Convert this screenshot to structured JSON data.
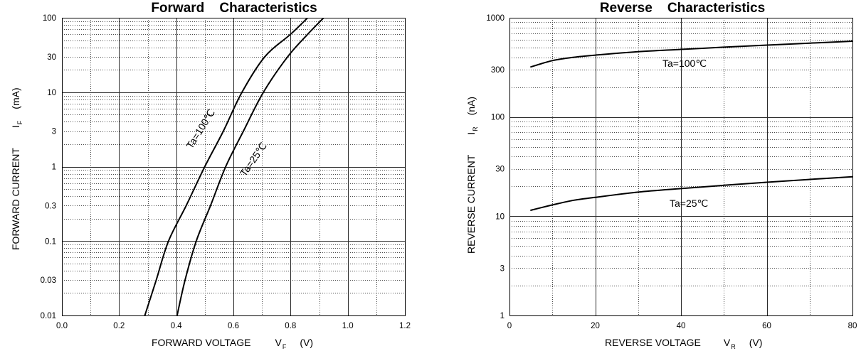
{
  "chart_data": [
    {
      "type": "line",
      "title": "Forward    Characteristics",
      "xlabel": {
        "text": "FORWARD VOLTAGE",
        "symbol": "V",
        "subscript": "F",
        "unit": "(V)"
      },
      "ylabel": {
        "text": "FORWARD CURRENT",
        "symbol": "I",
        "subscript": "F",
        "unit": "(mA)"
      },
      "xscale": "linear",
      "yscale": "log",
      "xlim": [
        0,
        1.2
      ],
      "ylim": [
        0.01,
        100
      ],
      "xticks": [
        0,
        0.2,
        0.4,
        0.6,
        0.8,
        1.0,
        1.2
      ],
      "xtick_labels": [
        "0.0",
        "0.2",
        "0.4",
        "0.6",
        "0.8",
        "1.0",
        "1.2"
      ],
      "yticks": [
        100,
        30,
        10,
        3,
        1,
        0.3,
        0.1,
        0.03,
        0.01
      ],
      "ytick_labels": [
        "100",
        "30",
        "10",
        "3",
        "1",
        "0.3",
        "0.1",
        "0.03",
        "0.01"
      ],
      "grid": true,
      "series": [
        {
          "name": "Ta=100℃",
          "x": [
            0.29,
            0.33,
            0.373,
            0.435,
            0.5,
            0.565,
            0.63,
            0.71,
            0.8,
            0.86
          ],
          "y": [
            0.01,
            0.03,
            0.1,
            0.3,
            1,
            3,
            10,
            30,
            60,
            100
          ]
        },
        {
          "name": "Ta=25℃",
          "x": [
            0.403,
            0.431,
            0.47,
            0.52,
            0.573,
            0.635,
            0.705,
            0.79,
            0.86,
            0.916
          ],
          "y": [
            0.01,
            0.03,
            0.1,
            0.3,
            1,
            3,
            10,
            30,
            60,
            100
          ]
        }
      ]
    },
    {
      "type": "line",
      "title": "Reverse    Characteristics",
      "xlabel": {
        "text": "REVERSE VOLTAGE",
        "symbol": "V",
        "subscript": "R",
        "unit": "(V)"
      },
      "ylabel": {
        "text": "REVERSE CURRENT",
        "symbol": "I",
        "subscript": "R",
        "unit": "(nA)"
      },
      "xscale": "linear",
      "yscale": "log",
      "xlim": [
        0,
        80
      ],
      "ylim": [
        1,
        1000
      ],
      "xticks": [
        0,
        20,
        40,
        60,
        80
      ],
      "xtick_labels": [
        "0",
        "20",
        "40",
        "60",
        "80"
      ],
      "yticks": [
        1000,
        300,
        100,
        30,
        10,
        3,
        1
      ],
      "ytick_labels": [
        "1000",
        "300",
        "100",
        "30",
        "10",
        "3",
        "1"
      ],
      "grid": true,
      "series": [
        {
          "name": "Ta=100℃",
          "x": [
            5,
            10,
            15,
            20,
            30,
            40,
            50,
            60,
            70,
            80
          ],
          "y": [
            320,
            370,
            400,
            420,
            455,
            480,
            505,
            530,
            555,
            580
          ]
        },
        {
          "name": "Ta=25℃",
          "x": [
            5,
            10,
            15,
            20,
            30,
            40,
            50,
            60,
            70,
            80
          ],
          "y": [
            11.5,
            13,
            14.5,
            15.5,
            17.5,
            19,
            20.5,
            22,
            23.5,
            25
          ]
        }
      ]
    }
  ]
}
